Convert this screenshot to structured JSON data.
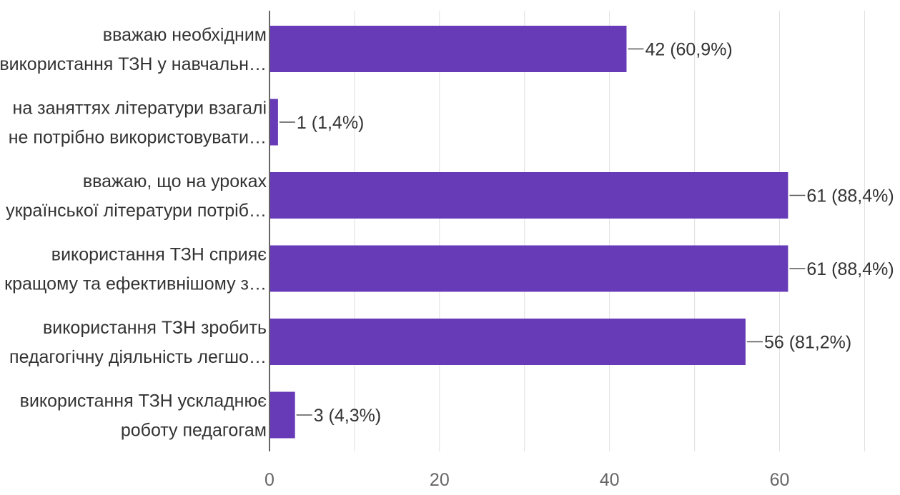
{
  "chart_data": {
    "type": "bar",
    "orientation": "horizontal",
    "categories": [
      [
        "вважаю необхідним",
        "використання ТЗН у навчальн…"
      ],
      [
        "на заняттях літератури взагалі",
        "не потрібно використовувати…"
      ],
      [
        "вважаю, що на уроках",
        "української літератури потріб…"
      ],
      [
        "використання ТЗН сприяє",
        "кращому та ефективнішому з…"
      ],
      [
        "використання ТЗН зробить",
        "педагогічну діяльність легшо…"
      ],
      [
        "використання ТЗН ускладнює",
        "роботу педагогам"
      ]
    ],
    "values": [
      42,
      1,
      61,
      61,
      56,
      3
    ],
    "data_labels": [
      "42 (60,9%)",
      "1 (1,4%)",
      "61 (88,4%)",
      "61 (88,4%)",
      "56 (81,2%)",
      "3 (4,3%)"
    ],
    "xlim": [
      0,
      74
    ],
    "x_ticks": [
      0,
      20,
      40,
      60
    ],
    "x_tick_labels": [
      "0",
      "20",
      "40",
      "60"
    ],
    "grid": true,
    "legend": "none",
    "colors": {
      "bar": "#673ab7",
      "grid": "#e0e0e0",
      "axis": "#333333",
      "label_text": "#333333",
      "leader": "#555555"
    }
  }
}
